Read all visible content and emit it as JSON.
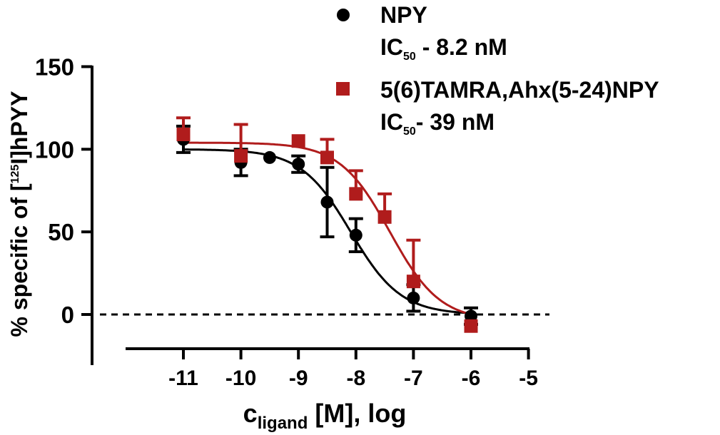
{
  "chart_data": {
    "type": "scatter",
    "title": "",
    "xlabel": {
      "main": "c",
      "sub": "ligand",
      "rest": " [M], log"
    },
    "ylabel": {
      "pre": "% specific of [",
      "sup": "125",
      "post": "I]hPYY"
    },
    "xlim": [
      -11.9,
      -5
    ],
    "ylim": [
      -30,
      150
    ],
    "xticks": [
      "-11",
      "-10",
      "-9",
      "-8",
      "-7",
      "-6",
      "-5"
    ],
    "yticks": [
      "0",
      "50",
      "100",
      "150"
    ],
    "reference_line_y": 0,
    "legend_position": "top-right",
    "series": [
      {
        "name": "NPY",
        "ic50_label": "IC",
        "ic50_sub": "50",
        "ic50_value": " - 8.2 nM",
        "color": "#000000",
        "marker": "circle",
        "x": [
          -11,
          -10,
          -9.5,
          -9,
          -8.5,
          -8,
          -7,
          -6
        ],
        "y": [
          106,
          92,
          95,
          91,
          68,
          48,
          10,
          -1
        ],
        "err": [
          8,
          8,
          0,
          5,
          21,
          10,
          8,
          5
        ],
        "fit": {
          "top": 100,
          "bottom": 0,
          "log_ic50": -8.09,
          "hill": 1
        }
      },
      {
        "name": "5(6)TAMRA,Ahx(5-24)NPY",
        "ic50_label": "IC",
        "ic50_sub": "50",
        "ic50_value": "- 39 nM",
        "color": "#b01c1c",
        "marker": "square",
        "x": [
          -11,
          -10,
          -9,
          -8.5,
          -8,
          -7.5,
          -7,
          -6
        ],
        "y": [
          109,
          96,
          105,
          95,
          73,
          59,
          20,
          -7
        ],
        "err": [
          10,
          19,
          0,
          11,
          14,
          14,
          25,
          0
        ],
        "fit": {
          "top": 104,
          "bottom": -4,
          "log_ic50": -7.41,
          "hill": 1
        }
      }
    ]
  }
}
